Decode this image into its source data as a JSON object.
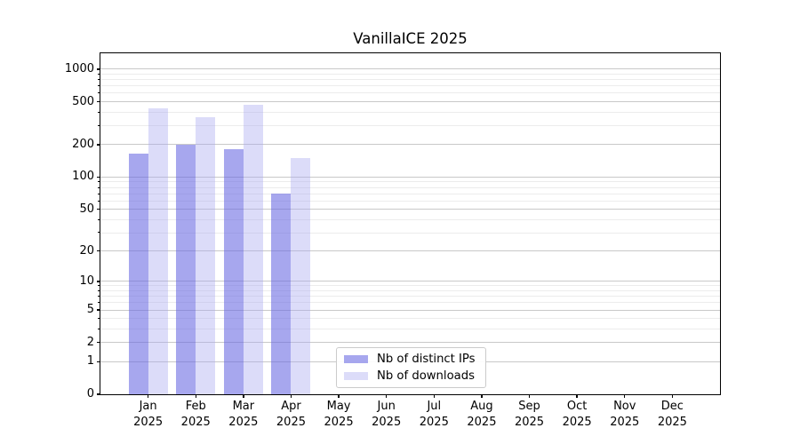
{
  "title": "VanillaICE 2025",
  "legend": {
    "items": [
      {
        "label": "Nb of distinct IPs",
        "color": "rgba(100,100,225,0.57)"
      },
      {
        "label": "Nb of downloads",
        "color": "rgba(168,168,240,0.40)"
      }
    ]
  },
  "colors": {
    "distinct_ips_bar": "rgba(100,100,225,0.57)",
    "downloads_bar": "rgba(168,168,240,0.40)",
    "major_grid": "#c9c9c9",
    "minor_grid": "#ececec",
    "axis": "#000000"
  },
  "chart_data": {
    "type": "bar",
    "title": "VanillaICE 2025",
    "xlabel": "",
    "ylabel": "",
    "year": "2025",
    "categories": [
      "Jan",
      "Feb",
      "Mar",
      "Apr",
      "May",
      "Jun",
      "Jul",
      "Aug",
      "Sep",
      "Oct",
      "Nov",
      "Dec"
    ],
    "series": [
      {
        "name": "Nb of distinct IPs",
        "color": "rgba(100,100,225,0.57)",
        "values": [
          165,
          200,
          180,
          70,
          null,
          null,
          null,
          null,
          null,
          null,
          null,
          null
        ]
      },
      {
        "name": "Nb of downloads",
        "color": "rgba(168,168,240,0.40)",
        "values": [
          435,
          360,
          465,
          150,
          null,
          null,
          null,
          null,
          null,
          null,
          null,
          null
        ]
      }
    ],
    "yscale": "log1p",
    "ylim": [
      0,
      1400
    ],
    "y_major_ticks": [
      0,
      1,
      2,
      5,
      10,
      20,
      50,
      100,
      200,
      500,
      1000
    ],
    "y_minor_ticks": [
      3,
      4,
      6,
      7,
      8,
      9,
      30,
      40,
      60,
      70,
      80,
      90,
      300,
      400,
      600,
      700,
      800,
      900
    ],
    "grid": "horizontal",
    "legend_position": "lower center"
  }
}
